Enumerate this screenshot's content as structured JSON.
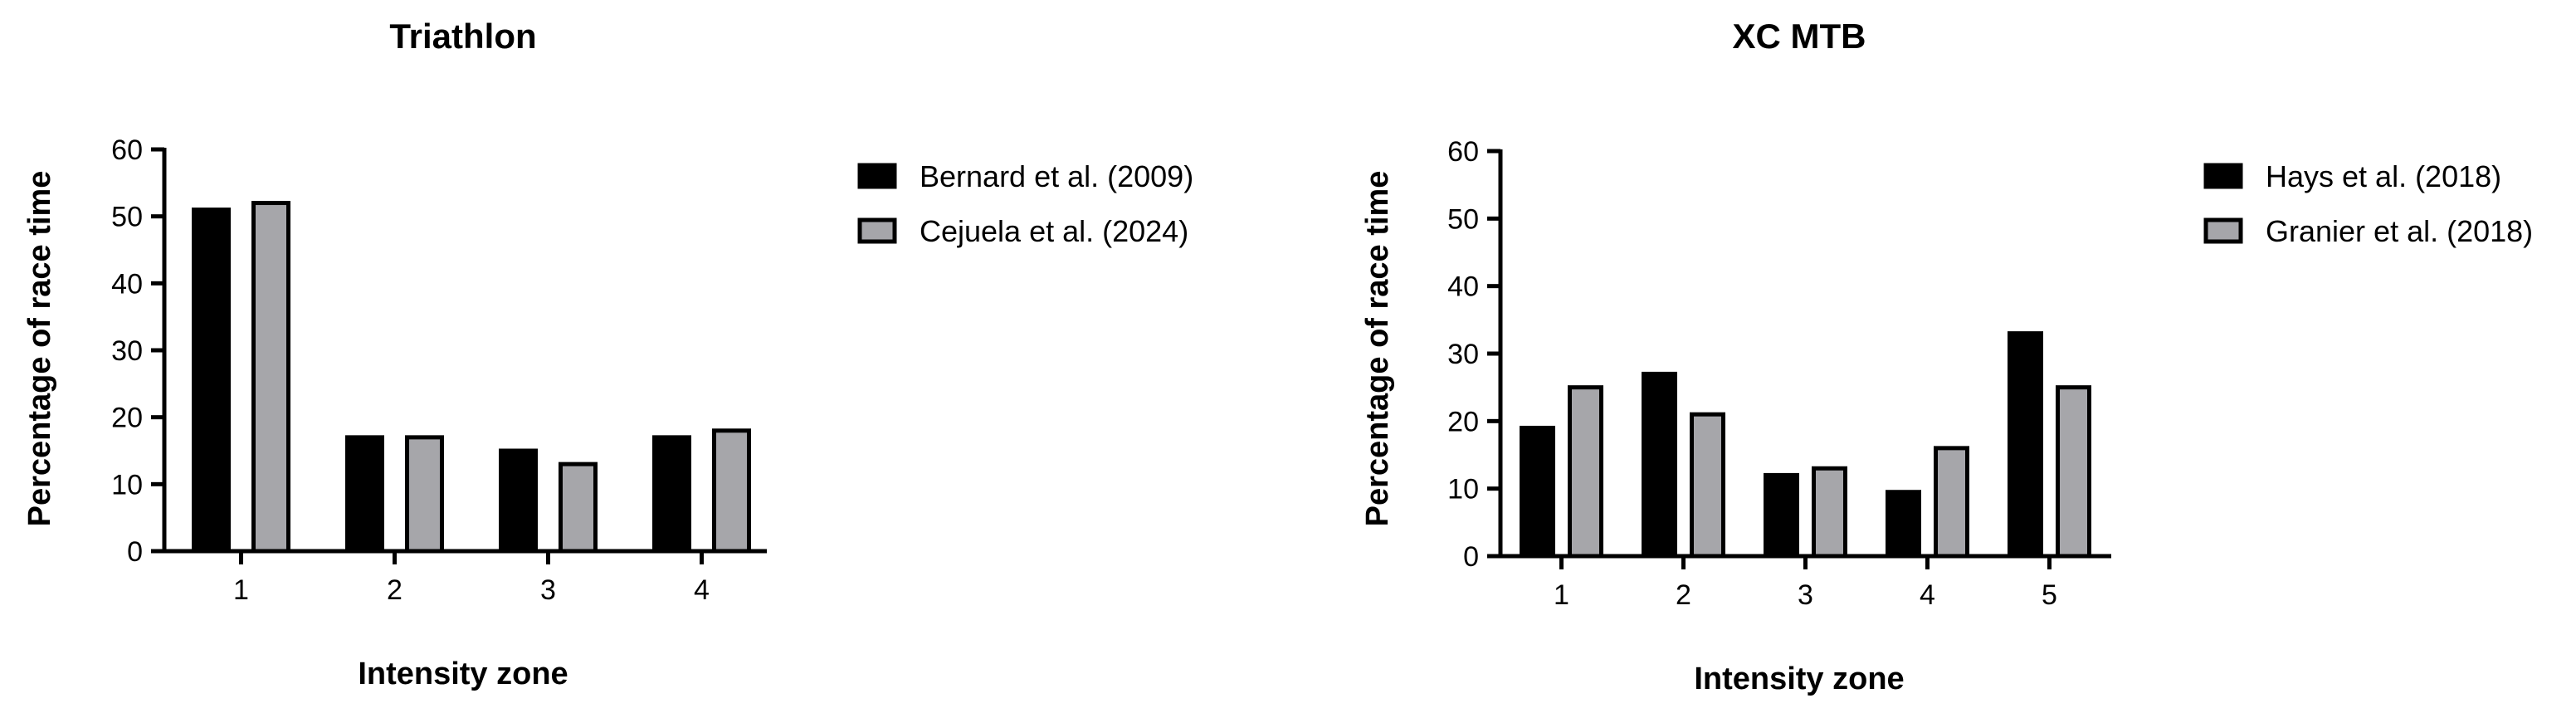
{
  "colors": {
    "series1": "#000000",
    "series2": "#a6a6aa",
    "outline": "#000000",
    "axis": "#000000"
  },
  "chart_data": [
    {
      "type": "bar",
      "title": "Triathlon",
      "xlabel": "Intensity zone",
      "ylabel": "Percentage of race time",
      "categories": [
        "1",
        "2",
        "3",
        "4"
      ],
      "ylim": [
        0,
        60
      ],
      "yticks": [
        "0",
        "10",
        "20",
        "30",
        "40",
        "50",
        "60"
      ],
      "grid": false,
      "legend": "right",
      "series": [
        {
          "name": "Bernard et al. (2009)",
          "values": [
            51,
            17,
            15,
            17
          ]
        },
        {
          "name": "Cejuela et al. (2024)",
          "values": [
            52,
            17,
            13,
            18
          ]
        }
      ]
    },
    {
      "type": "bar",
      "title": "XC MTB",
      "xlabel": "Intensity zone",
      "ylabel": "Percentage of race time",
      "categories": [
        "1",
        "2",
        "3",
        "4",
        "5"
      ],
      "ylim": [
        0,
        60
      ],
      "yticks": [
        "0",
        "10",
        "20",
        "30",
        "40",
        "50",
        "60"
      ],
      "grid": false,
      "legend": "right",
      "series": [
        {
          "name": "Hays et al. (2018)",
          "values": [
            19,
            27,
            12,
            9.5,
            33
          ]
        },
        {
          "name": "Granier et al. (2018)",
          "values": [
            25,
            21,
            13,
            16,
            25
          ]
        }
      ]
    }
  ]
}
